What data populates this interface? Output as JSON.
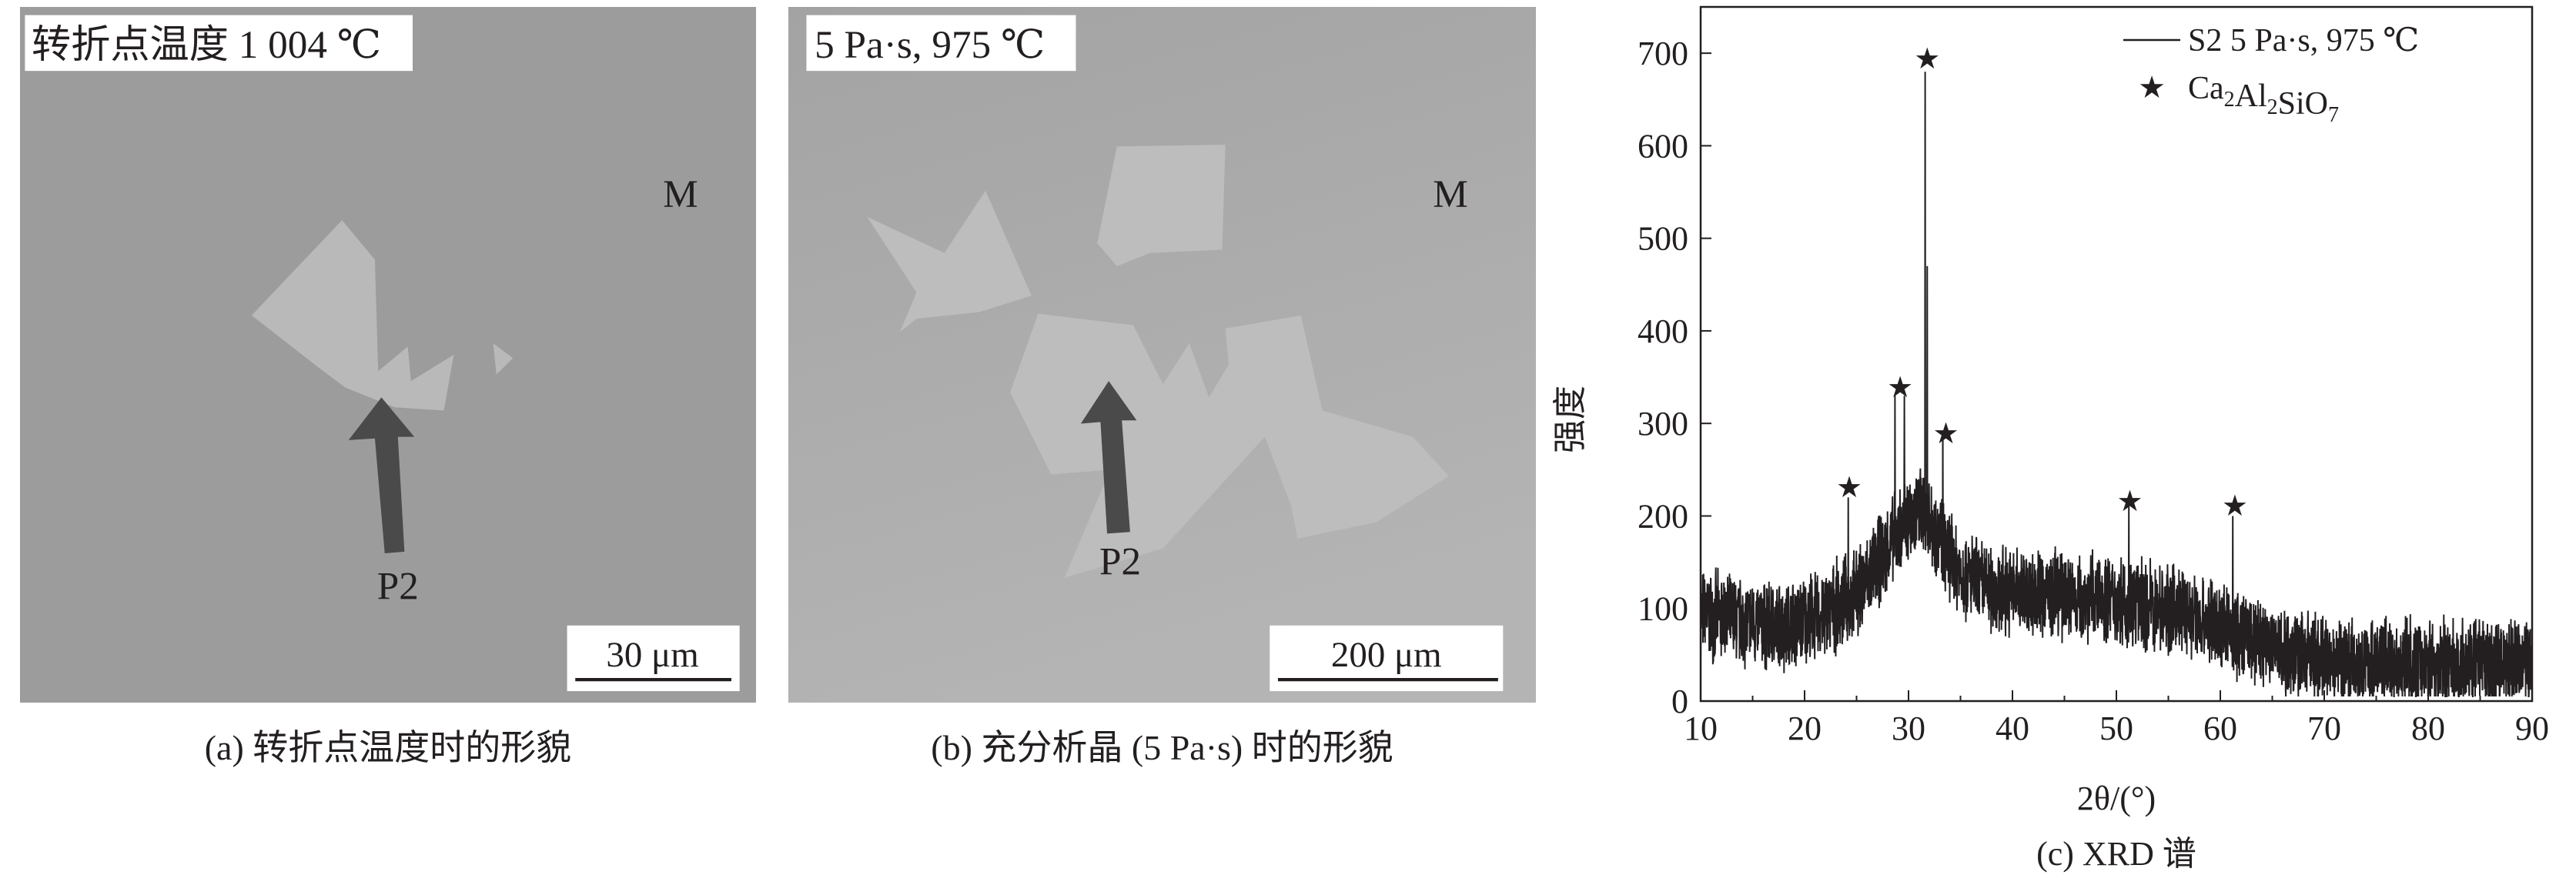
{
  "panels": [
    {
      "label": "转折点温度 1 004 ℃",
      "region_label": "M",
      "arrow_label": "P2",
      "scale_bar": "30 μm",
      "caption": "(a) 转折点温度时的形貌"
    },
    {
      "label": "5 Pa·s, 975 ℃",
      "region_label": "M",
      "arrow_label": "P2",
      "scale_bar": "200 μm",
      "caption": "(b) 充分析晶 (5 Pa·s) 时的形貌"
    }
  ],
  "colors": {
    "matrix_gray": "#9c9c9c",
    "crystal_gray": "#bababa",
    "arrow_dark": "#4a4a4a",
    "line": "#231f20"
  },
  "chart_data": {
    "type": "line",
    "caption": "(c) XRD 谱",
    "xlabel": "2θ/(°)",
    "ylabel": "强度",
    "xlim": [
      10,
      90
    ],
    "ylim": [
      0,
      750
    ],
    "xticks": [
      10,
      20,
      30,
      40,
      50,
      60,
      70,
      80,
      90
    ],
    "yticks": [
      0,
      100,
      200,
      300,
      400,
      500,
      600,
      700
    ],
    "grid": false,
    "legend_position": "top-right",
    "series": [
      {
        "name": "S2 5 Pa·s, 975 ℃",
        "baseline": [
          [
            10,
            95
          ],
          [
            14,
            85
          ],
          [
            18,
            80
          ],
          [
            22,
            95
          ],
          [
            25,
            115
          ],
          [
            28,
            165
          ],
          [
            30,
            195
          ],
          [
            31.5,
            210
          ],
          [
            33,
            175
          ],
          [
            35,
            140
          ],
          [
            38,
            120
          ],
          [
            45,
            115
          ],
          [
            50,
            110
          ],
          [
            55,
            100
          ],
          [
            58,
            90
          ],
          [
            62,
            70
          ],
          [
            66,
            55
          ],
          [
            70,
            45
          ],
          [
            80,
            40
          ],
          [
            90,
            40
          ]
        ],
        "noise_amplitude": 55,
        "peaks": [
          [
            24.2,
            220
          ],
          [
            28.7,
            330
          ],
          [
            29.6,
            330
          ],
          [
            31.6,
            680
          ],
          [
            31.8,
            470
          ],
          [
            33.3,
            290
          ],
          [
            51.2,
            210
          ],
          [
            61.2,
            200
          ]
        ]
      },
      {
        "name": "Ca2Al2SiO7",
        "marker": "star",
        "points": [
          [
            24.3,
            232
          ],
          [
            29.2,
            340
          ],
          [
            31.8,
            695
          ],
          [
            33.6,
            290
          ],
          [
            51.3,
            217
          ],
          [
            61.4,
            212
          ]
        ]
      }
    ]
  }
}
